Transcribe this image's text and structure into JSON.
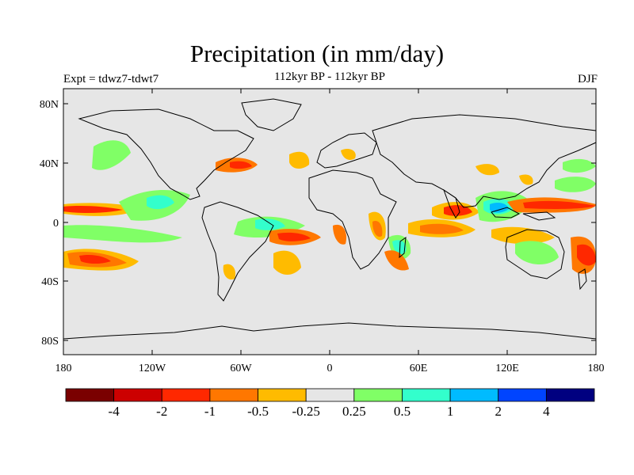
{
  "title": "Precipitation (in mm/day)",
  "subtitle_left": "Expt = tdwz7-tdwt7",
  "subtitle_center": "112kyr BP - 112kyr BP",
  "subtitle_right": "DJF",
  "lat_labels": [
    "80N",
    "40N",
    "0",
    "40S",
    "80S"
  ],
  "lon_labels": [
    "180",
    "120W",
    "60W",
    "0",
    "60E",
    "120E",
    "180"
  ],
  "colorbar": {
    "colors": [
      "#7a0000",
      "#cc0000",
      "#ff2800",
      "#ff7700",
      "#ffbb00",
      "#e6e6e6",
      "#80ff66",
      "#33ffcc",
      "#00bbff",
      "#0044ff",
      "#000080"
    ],
    "labels": [
      "-4",
      "-2",
      "-1",
      "-0.5",
      "-0.25",
      "0.25",
      "0.5",
      "1",
      "2",
      "4"
    ]
  },
  "colors": {
    "background": "#e6e6e6",
    "coast": "#000000"
  }
}
